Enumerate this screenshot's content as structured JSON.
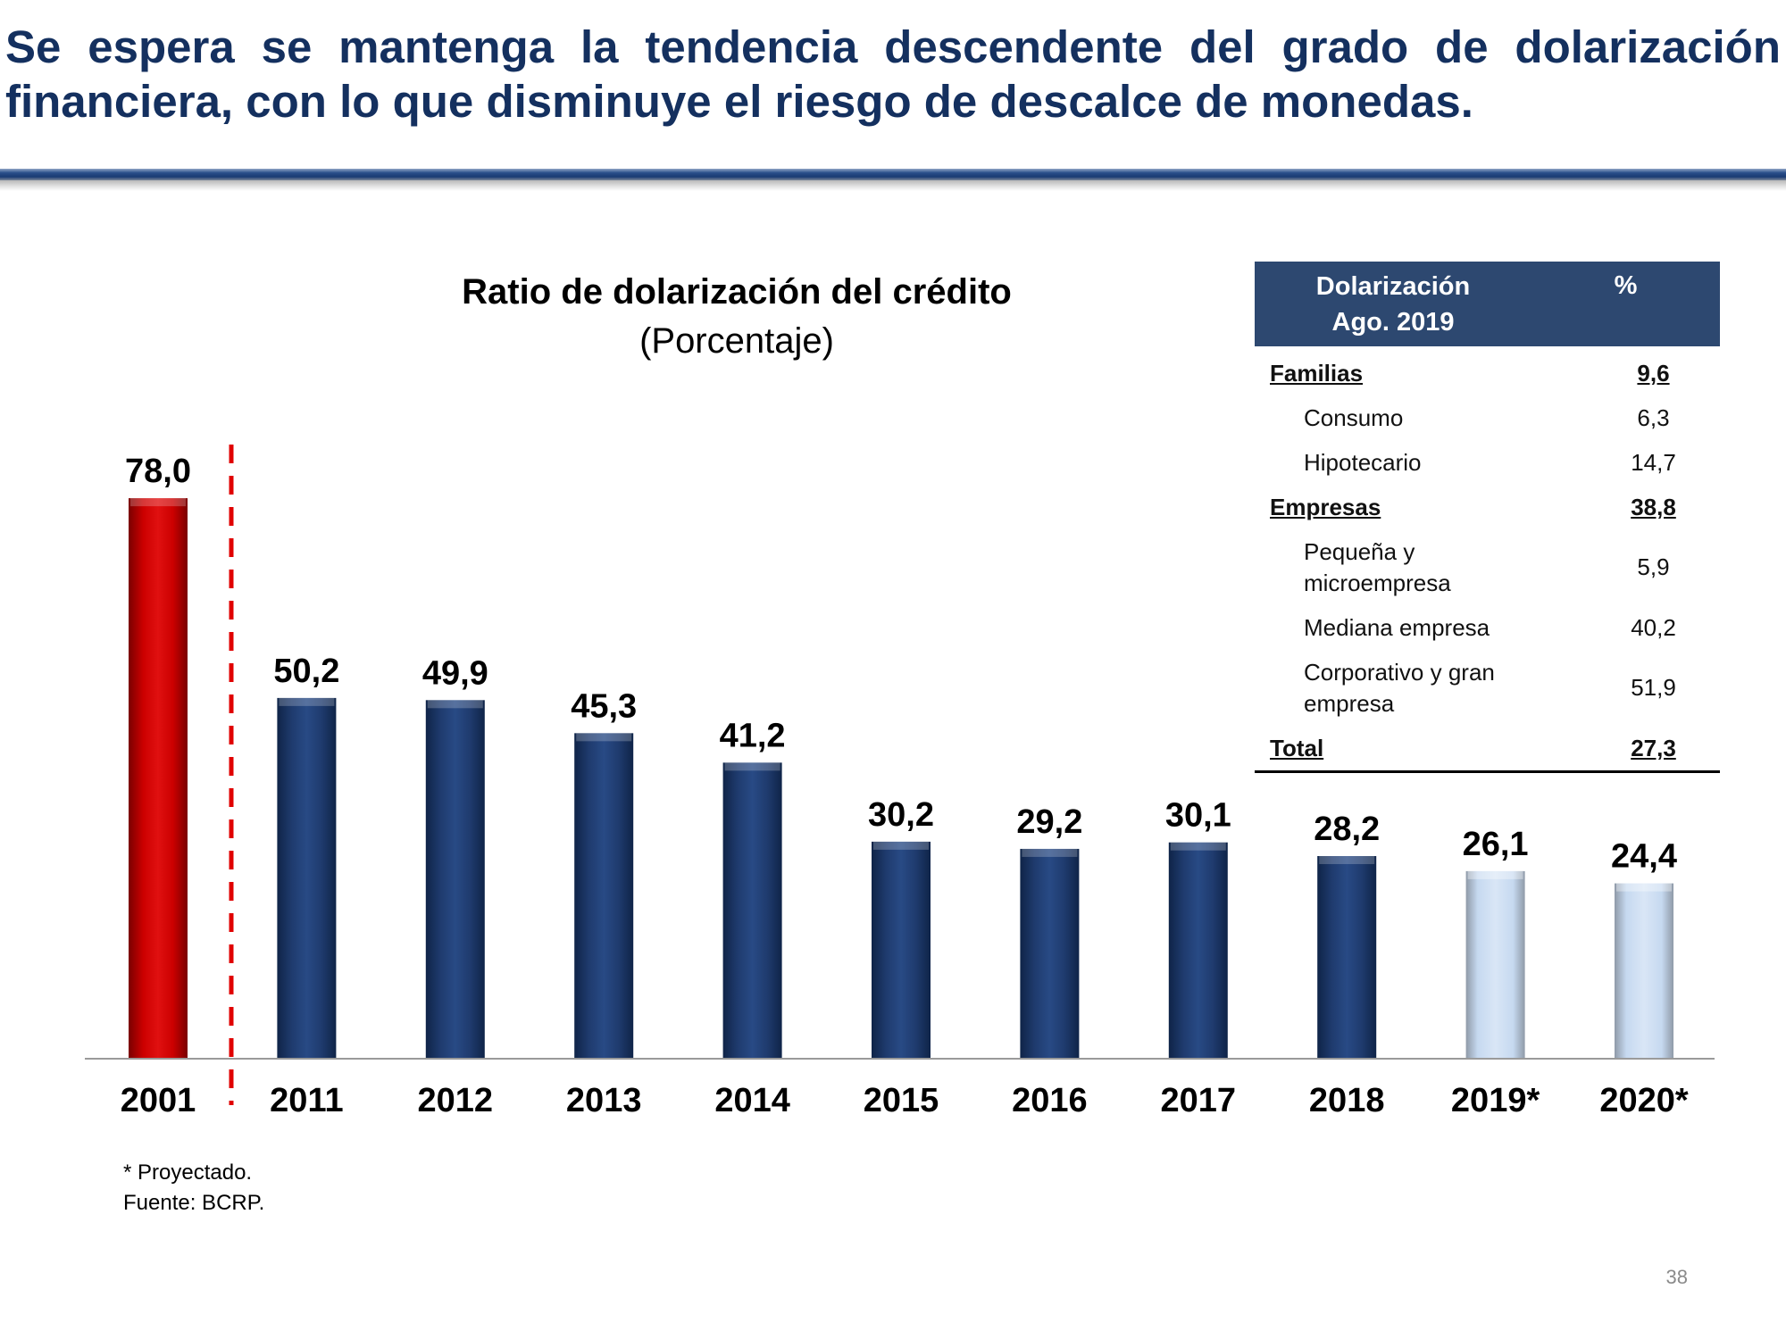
{
  "slide": {
    "title": "Se espera se mantenga la tendencia descendente del grado de dolarización financiera, con lo que disminuye el riesgo de descalce de monedas.",
    "page_number": "38"
  },
  "chart_data": {
    "type": "bar",
    "title": "Ratio de dolarización del crédito",
    "subtitle": "(Porcentaje)",
    "categories": [
      "2001",
      "2011",
      "2012",
      "2013",
      "2014",
      "2015",
      "2016",
      "2017",
      "2018",
      "2019*",
      "2020*"
    ],
    "values": [
      78.0,
      50.2,
      49.9,
      45.3,
      41.2,
      30.2,
      29.2,
      30.1,
      28.2,
      26.1,
      24.4
    ],
    "value_labels": [
      "78,0",
      "50,2",
      "49,9",
      "45,3",
      "41,2",
      "30,2",
      "29,2",
      "30,1",
      "28,2",
      "26,1",
      "24,4"
    ],
    "bar_kinds": [
      "historic-2001",
      "actual",
      "actual",
      "actual",
      "actual",
      "actual",
      "actual",
      "actual",
      "actual",
      "projected",
      "projected"
    ],
    "colors": {
      "historic-2001": "#c00000",
      "actual": "#1f3b6e",
      "projected": "#c6d9f0",
      "separator": "#e00000"
    },
    "ylim": [
      0,
      80
    ],
    "grid": false,
    "legend": "none",
    "separator_after_category": "2001",
    "xlabel": "",
    "ylabel": ""
  },
  "table": {
    "header": {
      "col1_line1": "Dolarización",
      "col1_line2": "Ago. 2019",
      "col2": "%"
    },
    "rows": [
      {
        "kind": "group",
        "label": "Familias",
        "value": "9,6"
      },
      {
        "kind": "sub",
        "label": "Consumo",
        "value": "6,3"
      },
      {
        "kind": "sub",
        "label": "Hipotecario",
        "value": "14,7"
      },
      {
        "kind": "group",
        "label": "Empresas",
        "value": "38,8"
      },
      {
        "kind": "sub",
        "label": "Pequeña y microempresa",
        "value": "5,9"
      },
      {
        "kind": "sub",
        "label": "Mediana empresa",
        "value": "40,2"
      },
      {
        "kind": "sub",
        "label": "Corporativo y gran empresa",
        "value": "51,9"
      },
      {
        "kind": "group",
        "label": "Total",
        "value": "27,3"
      }
    ]
  },
  "footnotes": {
    "projected": "* Proyectado.",
    "source": "Fuente: BCRP."
  }
}
